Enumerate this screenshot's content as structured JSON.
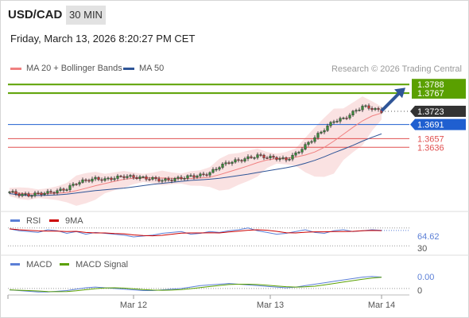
{
  "header": {
    "symbol": "USD/CAD",
    "timeframe": "30 MIN",
    "datetime": "Friday, March 13, 2026 8:20:27 PM CET"
  },
  "legend": {
    "ma20_bb": "MA 20 + Bollinger Bands",
    "ma50": "MA 50",
    "credit": "Research © 2026 Trading Central"
  },
  "colors": {
    "ma20": "#f08080",
    "ma50": "#2f5597",
    "target": "#5aa000",
    "current": "#333333",
    "pivot": "#1f5fd0",
    "support": "#e05050",
    "rsi": "#5b7fd6",
    "rsi_ma": "#cc0000",
    "macd": "#5b7fd6",
    "macd_signal": "#5aa000"
  },
  "chart_data": [
    {
      "type": "candlestick",
      "instrument": "USD/CAD",
      "interval": "30 MIN",
      "x_ticks": [
        "Mar 12",
        "Mar 13",
        "Mar 14"
      ],
      "series": [
        {
          "name": "MA 20 + Bollinger Bands"
        },
        {
          "name": "MA 50"
        }
      ],
      "levels": [
        {
          "value": "1.3788",
          "kind": "target"
        },
        {
          "value": "1.3767",
          "kind": "target"
        },
        {
          "value": "1.3723",
          "kind": "current"
        },
        {
          "value": "1.3691",
          "kind": "pivot"
        },
        {
          "value": "1.3657",
          "kind": "support"
        },
        {
          "value": "1.3636",
          "kind": "support"
        }
      ],
      "close_path": [
        1.3528,
        1.3522,
        1.352,
        1.3524,
        1.3526,
        1.353,
        1.3536,
        1.355,
        1.3556,
        1.356,
        1.3558,
        1.3562,
        1.3566,
        1.3564,
        1.3562,
        1.356,
        1.3556,
        1.3558,
        1.3562,
        1.3566,
        1.3568,
        1.3574,
        1.359,
        1.36,
        1.3604,
        1.361,
        1.3616,
        1.3612,
        1.361,
        1.3606,
        1.362,
        1.364,
        1.366,
        1.368,
        1.37,
        1.3705,
        1.372,
        1.3735,
        1.373,
        1.3723
      ]
    },
    {
      "type": "line",
      "name": "RSI",
      "series": [
        {
          "name": "RSI"
        },
        {
          "name": "9MA"
        }
      ],
      "y_ticks": [
        "64.62",
        "30"
      ],
      "rsi_path": [
        68,
        64,
        62,
        60,
        66,
        64,
        58,
        62,
        56,
        60,
        58,
        56,
        54,
        50,
        52,
        54,
        58,
        60,
        62,
        56,
        58,
        62,
        60,
        64,
        66,
        70,
        64,
        60,
        56,
        58,
        62,
        66,
        60,
        58,
        64,
        66,
        62,
        64,
        66,
        64.62
      ]
    },
    {
      "type": "line",
      "name": "MACD",
      "series": [
        {
          "name": "MACD"
        },
        {
          "name": "MACD Signal"
        }
      ],
      "y_ticks": [
        "0.00",
        "0"
      ],
      "macd_path": [
        -0.0002,
        -0.0003,
        -0.0004,
        -0.0005,
        -0.0005,
        -0.0004,
        -0.0003,
        -0.0001,
        0.0001,
        0.0002,
        0.0001,
        0.0,
        -0.0001,
        -0.0002,
        -0.0003,
        -0.0003,
        -0.0002,
        -0.0001,
        0.0,
        0.0002,
        0.0004,
        0.0005,
        0.0006,
        0.0007,
        0.0006,
        0.0005,
        0.0004,
        0.0003,
        0.0002,
        0.0001,
        0.0002,
        0.0004,
        0.0006,
        0.0008,
        0.001,
        0.0012,
        0.0014,
        0.0016,
        0.0017,
        0.0016
      ]
    }
  ]
}
